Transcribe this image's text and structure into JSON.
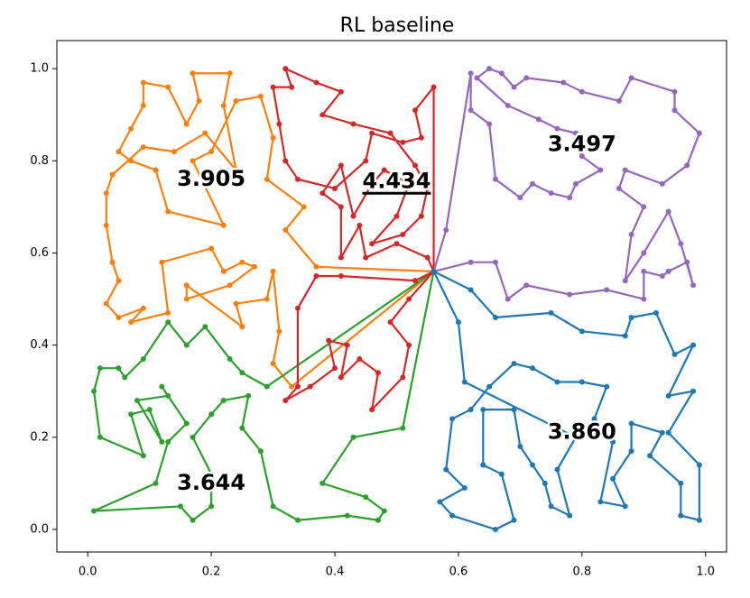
{
  "chart_data": {
    "type": "line",
    "title": "RL baseline",
    "markers": true,
    "xlim": [
      -0.05,
      1.034
    ],
    "ylim": [
      -0.049,
      1.061
    ],
    "xticks": [
      {
        "value": 0,
        "label": "0.0"
      },
      0.2,
      0.4,
      0.6,
      0.8,
      {
        "value": 1,
        "label": "1.0"
      }
    ],
    "yticks": [
      {
        "value": 0,
        "label": "0.0"
      },
      0.2,
      0.4,
      0.6,
      0.8,
      {
        "value": 1,
        "label": "1.0"
      }
    ],
    "series": [
      {
        "color": "#ff7f0e",
        "x": [
          0.56,
          0.37,
          0.32,
          0.35,
          0.29,
          0.3,
          0.28,
          0.24,
          0.2,
          0.17,
          0.22,
          0.13,
          0.11,
          0.07,
          0.05,
          0.07,
          0.09,
          0.09,
          0.13,
          0.16,
          0.18,
          0.17,
          0.23,
          0.22,
          0.24,
          0.19,
          0.14,
          0.09,
          0.04,
          0.03,
          0.03,
          0.04,
          0.05,
          0.03,
          0.05,
          0.09,
          0.07,
          0.13,
          0.12,
          0.2,
          0.22,
          0.25,
          0.27,
          0.23,
          0.16,
          0.16,
          0.25,
          0.24,
          0.29,
          0.3,
          0.31,
          0.3,
          0.33,
          0.56
        ],
        "y": [
          0.56,
          0.57,
          0.65,
          0.7,
          0.76,
          0.85,
          0.94,
          0.93,
          0.82,
          0.8,
          0.66,
          0.69,
          0.78,
          0.8,
          0.82,
          0.87,
          0.92,
          0.97,
          0.96,
          0.88,
          0.93,
          0.99,
          0.99,
          0.92,
          0.78,
          0.86,
          0.82,
          0.83,
          0.77,
          0.73,
          0.66,
          0.58,
          0.54,
          0.49,
          0.46,
          0.48,
          0.45,
          0.47,
          0.58,
          0.61,
          0.56,
          0.58,
          0.57,
          0.53,
          0.5,
          0.53,
          0.44,
          0.49,
          0.5,
          0.56,
          0.43,
          0.36,
          0.31,
          0.56
        ]
      },
      {
        "color": "#2ca02c",
        "x": [
          0.56,
          0.29,
          0.25,
          0.23,
          0.19,
          0.16,
          0.13,
          0.09,
          0.06,
          0.05,
          0.02,
          0.01,
          0.02,
          0.09,
          0.07,
          0.1,
          0.12,
          0.08,
          0.13,
          0.12,
          0.16,
          0.13,
          0.11,
          0.01,
          0.15,
          0.17,
          0.2,
          0.2,
          0.17,
          0.2,
          0.22,
          0.26,
          0.25,
          0.28,
          0.3,
          0.34,
          0.42,
          0.47,
          0.48,
          0.45,
          0.38,
          0.43,
          0.51,
          0.56
        ],
        "y": [
          0.56,
          0.31,
          0.34,
          0.37,
          0.44,
          0.4,
          0.45,
          0.37,
          0.33,
          0.35,
          0.35,
          0.3,
          0.2,
          0.16,
          0.25,
          0.26,
          0.19,
          0.28,
          0.29,
          0.31,
          0.23,
          0.19,
          0.1,
          0.04,
          0.05,
          0.02,
          0.05,
          0.12,
          0.2,
          0.25,
          0.28,
          0.29,
          0.22,
          0.17,
          0.05,
          0.02,
          0.03,
          0.02,
          0.04,
          0.07,
          0.1,
          0.2,
          0.22,
          0.56
        ]
      },
      {
        "color": "#d62728",
        "x": [
          0.56,
          0.55,
          0.5,
          0.45,
          0.44,
          0.41,
          0.41,
          0.38,
          0.41,
          0.43,
          0.46,
          0.48,
          0.52,
          0.5,
          0.46,
          0.51,
          0.54,
          0.55,
          0.53,
          0.49,
          0.43,
          0.38,
          0.41,
          0.37,
          0.32,
          0.33,
          0.3,
          0.31,
          0.32,
          0.34,
          0.4,
          0.45,
          0.46,
          0.51,
          0.54,
          0.53,
          0.56,
          0.56,
          0.53,
          0.41,
          0.37,
          0.34,
          0.34,
          0.32,
          0.36,
          0.4,
          0.39,
          0.42,
          0.41,
          0.44,
          0.47,
          0.46,
          0.51,
          0.52,
          0.49,
          0.52,
          0.56
        ],
        "y": [
          0.56,
          0.59,
          0.62,
          0.59,
          0.66,
          0.59,
          0.7,
          0.73,
          0.79,
          0.68,
          0.75,
          0.78,
          0.75,
          0.68,
          0.62,
          0.64,
          0.68,
          0.74,
          0.79,
          0.86,
          0.88,
          0.9,
          0.95,
          0.97,
          1.0,
          0.96,
          0.96,
          0.88,
          0.8,
          0.76,
          0.74,
          0.8,
          0.86,
          0.84,
          0.85,
          0.91,
          0.96,
          0.56,
          0.54,
          0.55,
          0.55,
          0.48,
          0.31,
          0.28,
          0.31,
          0.35,
          0.41,
          0.4,
          0.33,
          0.37,
          0.34,
          0.26,
          0.33,
          0.4,
          0.45,
          0.5,
          0.56
        ]
      },
      {
        "color": "#9467bd",
        "x": [
          0.56,
          0.62,
          0.66,
          0.68,
          0.71,
          0.78,
          0.84,
          0.9,
          0.9,
          0.93,
          0.94,
          0.97,
          0.98,
          0.96,
          0.94,
          0.9,
          0.87,
          0.88,
          0.9,
          0.86,
          0.87,
          0.93,
          0.97,
          0.99,
          0.95,
          0.95,
          0.88,
          0.86,
          0.8,
          0.77,
          0.71,
          0.69,
          0.67,
          0.65,
          0.63,
          0.68,
          0.73,
          0.76,
          0.79,
          0.8,
          0.83,
          0.79,
          0.78,
          0.75,
          0.72,
          0.7,
          0.66,
          0.65,
          0.62,
          0.62,
          0.58,
          0.56
        ],
        "y": [
          0.56,
          0.58,
          0.58,
          0.5,
          0.53,
          0.51,
          0.52,
          0.5,
          0.56,
          0.55,
          0.56,
          0.58,
          0.53,
          0.62,
          0.69,
          0.6,
          0.54,
          0.64,
          0.7,
          0.74,
          0.78,
          0.75,
          0.79,
          0.86,
          0.91,
          0.95,
          0.98,
          0.93,
          0.95,
          0.97,
          0.98,
          0.96,
          0.99,
          1.0,
          0.98,
          0.92,
          0.89,
          0.87,
          0.86,
          0.81,
          0.78,
          0.75,
          0.72,
          0.73,
          0.75,
          0.72,
          0.76,
          0.88,
          0.91,
          0.99,
          0.65,
          0.56
        ]
      },
      {
        "color": "#1f77b4",
        "x": [
          0.56,
          0.62,
          0.66,
          0.75,
          0.8,
          0.87,
          0.88,
          0.92,
          0.95,
          0.98,
          0.94,
          0.98,
          0.94,
          0.99,
          0.99,
          0.96,
          0.96,
          0.91,
          0.93,
          0.88,
          0.88,
          0.85,
          0.87,
          0.83,
          0.85,
          0.82,
          0.84,
          0.8,
          0.76,
          0.72,
          0.69,
          0.65,
          0.62,
          0.59,
          0.58,
          0.61,
          0.57,
          0.59,
          0.66,
          0.69,
          0.67,
          0.64,
          0.64,
          0.69,
          0.7,
          0.72,
          0.74,
          0.75,
          0.78,
          0.76,
          0.79,
          0.61,
          0.6,
          0.56
        ],
        "y": [
          0.56,
          0.52,
          0.46,
          0.47,
          0.43,
          0.42,
          0.46,
          0.47,
          0.38,
          0.4,
          0.29,
          0.3,
          0.21,
          0.14,
          0.02,
          0.03,
          0.1,
          0.16,
          0.21,
          0.23,
          0.17,
          0.11,
          0.05,
          0.06,
          0.19,
          0.24,
          0.31,
          0.32,
          0.32,
          0.35,
          0.36,
          0.31,
          0.26,
          0.24,
          0.13,
          0.09,
          0.06,
          0.03,
          0.0,
          0.02,
          0.12,
          0.14,
          0.26,
          0.26,
          0.18,
          0.14,
          0.1,
          0.05,
          0.03,
          0.13,
          0.2,
          0.32,
          0.45,
          0.56
        ]
      }
    ],
    "annotations": [
      {
        "text": "3.905",
        "x": 0.2,
        "y": 0.76
      },
      {
        "text": "4.434",
        "x": 0.5,
        "y": 0.755,
        "underline": true
      },
      {
        "text": "3.497",
        "x": 0.8,
        "y": 0.835
      },
      {
        "text": "3.860",
        "x": 0.8,
        "y": 0.21
      },
      {
        "text": "3.644",
        "x": 0.2,
        "y": 0.1
      }
    ]
  }
}
